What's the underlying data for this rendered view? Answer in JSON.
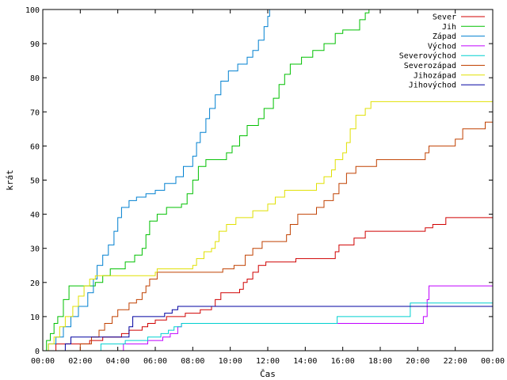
{
  "chart_data": {
    "type": "line",
    "title": "",
    "xlabel": "Čas",
    "ylabel": "krát",
    "xlim": [
      0,
      24
    ],
    "ylim": [
      0,
      100
    ],
    "x_ticks": [
      {
        "value": 0,
        "label": "00:00"
      },
      {
        "value": 2,
        "label": "02:00"
      },
      {
        "value": 4,
        "label": "04:00"
      },
      {
        "value": 6,
        "label": "06:00"
      },
      {
        "value": 8,
        "label": "08:00"
      },
      {
        "value": 10,
        "label": "10:00"
      },
      {
        "value": 12,
        "label": "12:00"
      },
      {
        "value": 14,
        "label": "14:00"
      },
      {
        "value": 16,
        "label": "16:00"
      },
      {
        "value": 18,
        "label": "18:00"
      },
      {
        "value": 20,
        "label": "20:00"
      },
      {
        "value": 22,
        "label": "22:00"
      },
      {
        "value": 24,
        "label": "00:00"
      }
    ],
    "y_ticks": [
      0,
      10,
      20,
      30,
      40,
      50,
      60,
      70,
      80,
      90,
      100
    ],
    "grid": false,
    "legend": "top-right",
    "step": true,
    "series": [
      {
        "name": "Sever",
        "color": "#d00000",
        "points": [
          [
            0,
            0
          ],
          [
            0.7,
            2
          ],
          [
            1.5,
            2
          ],
          [
            2.5,
            3
          ],
          [
            3.2,
            4
          ],
          [
            4.2,
            5
          ],
          [
            4.6,
            6
          ],
          [
            5.0,
            6
          ],
          [
            5.3,
            7
          ],
          [
            5.6,
            8
          ],
          [
            6.0,
            9
          ],
          [
            6.6,
            10
          ],
          [
            7.6,
            11
          ],
          [
            8.4,
            12
          ],
          [
            9.0,
            13
          ],
          [
            9.2,
            15
          ],
          [
            9.5,
            17
          ],
          [
            10.5,
            18
          ],
          [
            10.7,
            20
          ],
          [
            10.9,
            21
          ],
          [
            11.2,
            23
          ],
          [
            11.5,
            25
          ],
          [
            11.9,
            26
          ],
          [
            13.5,
            27
          ],
          [
            15.6,
            29
          ],
          [
            15.8,
            31
          ],
          [
            16.6,
            33
          ],
          [
            17.2,
            35
          ],
          [
            20.4,
            36
          ],
          [
            20.8,
            37
          ],
          [
            21.5,
            39
          ],
          [
            24,
            40
          ]
        ]
      },
      {
        "name": "Jih",
        "color": "#00c000",
        "points": [
          [
            0,
            0
          ],
          [
            0.2,
            3
          ],
          [
            0.4,
            5
          ],
          [
            0.6,
            8
          ],
          [
            0.8,
            10
          ],
          [
            1.1,
            15
          ],
          [
            1.4,
            19
          ],
          [
            2.8,
            20
          ],
          [
            3.2,
            22
          ],
          [
            3.6,
            24
          ],
          [
            4.4,
            26
          ],
          [
            4.9,
            28
          ],
          [
            5.3,
            30
          ],
          [
            5.5,
            34
          ],
          [
            5.7,
            38
          ],
          [
            6.1,
            40
          ],
          [
            6.6,
            42
          ],
          [
            7.4,
            43
          ],
          [
            7.7,
            46
          ],
          [
            8.0,
            50
          ],
          [
            8.3,
            54
          ],
          [
            8.7,
            56
          ],
          [
            9.8,
            58
          ],
          [
            10.1,
            60
          ],
          [
            10.5,
            63
          ],
          [
            10.9,
            66
          ],
          [
            11.5,
            68
          ],
          [
            11.8,
            71
          ],
          [
            12.3,
            74
          ],
          [
            12.6,
            78
          ],
          [
            12.9,
            81
          ],
          [
            13.2,
            84
          ],
          [
            13.8,
            86
          ],
          [
            14.4,
            88
          ],
          [
            15.0,
            90
          ],
          [
            15.6,
            93
          ],
          [
            16.0,
            94
          ],
          [
            16.9,
            97
          ],
          [
            17.2,
            99
          ],
          [
            17.4,
            100
          ]
        ]
      },
      {
        "name": "Západ",
        "color": "#0080d0",
        "points": [
          [
            0,
            0
          ],
          [
            0.3,
            2
          ],
          [
            0.7,
            4
          ],
          [
            1.1,
            7
          ],
          [
            1.5,
            10
          ],
          [
            1.9,
            13
          ],
          [
            2.4,
            17
          ],
          [
            2.7,
            21
          ],
          [
            2.9,
            25
          ],
          [
            3.2,
            28
          ],
          [
            3.5,
            31
          ],
          [
            3.8,
            35
          ],
          [
            4.0,
            39
          ],
          [
            4.2,
            42
          ],
          [
            4.6,
            44
          ],
          [
            5.0,
            45
          ],
          [
            5.5,
            46
          ],
          [
            6.0,
            47
          ],
          [
            6.5,
            49
          ],
          [
            7.1,
            51
          ],
          [
            7.5,
            54
          ],
          [
            8.0,
            57
          ],
          [
            8.2,
            61
          ],
          [
            8.4,
            64
          ],
          [
            8.7,
            68
          ],
          [
            8.9,
            71
          ],
          [
            9.2,
            75
          ],
          [
            9.5,
            79
          ],
          [
            9.9,
            82
          ],
          [
            10.4,
            84
          ],
          [
            10.9,
            86
          ],
          [
            11.2,
            88
          ],
          [
            11.5,
            91
          ],
          [
            11.8,
            95
          ],
          [
            12.0,
            98
          ],
          [
            12.1,
            100
          ]
        ]
      },
      {
        "name": "Východ",
        "color": "#c000ff",
        "points": [
          [
            0,
            0
          ],
          [
            4.2,
            0
          ],
          [
            4.3,
            2
          ],
          [
            5.6,
            3
          ],
          [
            6.4,
            4
          ],
          [
            6.8,
            5
          ],
          [
            7.2,
            7
          ],
          [
            7.4,
            8
          ],
          [
            16.0,
            8
          ],
          [
            19.5,
            8
          ],
          [
            20.3,
            10
          ],
          [
            20.5,
            15
          ],
          [
            20.6,
            19
          ],
          [
            24,
            19
          ]
        ]
      },
      {
        "name": "Severovýchod",
        "color": "#00d0d0",
        "points": [
          [
            0,
            0
          ],
          [
            3.0,
            0
          ],
          [
            3.1,
            2
          ],
          [
            4.4,
            3
          ],
          [
            5.6,
            4
          ],
          [
            6.3,
            5
          ],
          [
            6.7,
            6
          ],
          [
            7.0,
            7
          ],
          [
            7.4,
            8
          ],
          [
            15.6,
            8
          ],
          [
            15.7,
            10
          ],
          [
            19.4,
            10
          ],
          [
            19.6,
            14
          ],
          [
            24,
            14
          ]
        ]
      },
      {
        "name": "Severozápad",
        "color": "#c04000",
        "points": [
          [
            0,
            0
          ],
          [
            1.5,
            0
          ],
          [
            2.0,
            2
          ],
          [
            2.6,
            4
          ],
          [
            3.0,
            6
          ],
          [
            3.3,
            8
          ],
          [
            3.7,
            10
          ],
          [
            4.0,
            12
          ],
          [
            4.6,
            14
          ],
          [
            5.0,
            15
          ],
          [
            5.3,
            17
          ],
          [
            5.5,
            19
          ],
          [
            5.7,
            21
          ],
          [
            6.1,
            23
          ],
          [
            9.6,
            24
          ],
          [
            10.2,
            25
          ],
          [
            10.8,
            28
          ],
          [
            11.2,
            30
          ],
          [
            11.7,
            32
          ],
          [
            13.0,
            34
          ],
          [
            13.2,
            37
          ],
          [
            13.6,
            40
          ],
          [
            14.6,
            42
          ],
          [
            15.0,
            44
          ],
          [
            15.5,
            46
          ],
          [
            15.8,
            49
          ],
          [
            16.2,
            52
          ],
          [
            16.7,
            54
          ],
          [
            17.8,
            56
          ],
          [
            20.4,
            58
          ],
          [
            20.6,
            60
          ],
          [
            22.0,
            62
          ],
          [
            22.4,
            65
          ],
          [
            23.6,
            67
          ],
          [
            24,
            67
          ]
        ]
      },
      {
        "name": "Jihozápad",
        "color": "#e0e000",
        "points": [
          [
            0,
            0
          ],
          [
            0.3,
            2
          ],
          [
            0.6,
            4
          ],
          [
            0.9,
            7
          ],
          [
            1.2,
            10
          ],
          [
            1.6,
            13
          ],
          [
            1.9,
            16
          ],
          [
            2.2,
            19
          ],
          [
            2.5,
            21
          ],
          [
            2.8,
            22
          ],
          [
            6.0,
            23
          ],
          [
            6.1,
            24
          ],
          [
            8.0,
            25
          ],
          [
            8.2,
            27
          ],
          [
            8.6,
            29
          ],
          [
            9.0,
            30
          ],
          [
            9.2,
            32
          ],
          [
            9.4,
            35
          ],
          [
            9.8,
            37
          ],
          [
            10.3,
            39
          ],
          [
            11.2,
            41
          ],
          [
            12.0,
            43
          ],
          [
            12.4,
            45
          ],
          [
            12.9,
            47
          ],
          [
            14.6,
            49
          ],
          [
            15.0,
            51
          ],
          [
            15.4,
            53
          ],
          [
            15.6,
            56
          ],
          [
            16.0,
            58
          ],
          [
            16.2,
            61
          ],
          [
            16.4,
            65
          ],
          [
            16.7,
            69
          ],
          [
            17.2,
            71
          ],
          [
            17.5,
            73
          ],
          [
            24,
            73
          ]
        ]
      },
      {
        "name": "Jihovýchod",
        "color": "#0000a0",
        "points": [
          [
            0,
            0
          ],
          [
            1.0,
            0
          ],
          [
            1.2,
            2
          ],
          [
            1.5,
            4
          ],
          [
            4.5,
            4
          ],
          [
            4.6,
            7
          ],
          [
            4.8,
            10
          ],
          [
            6.5,
            11
          ],
          [
            6.9,
            12
          ],
          [
            7.2,
            13
          ],
          [
            24,
            13
          ]
        ]
      }
    ]
  }
}
